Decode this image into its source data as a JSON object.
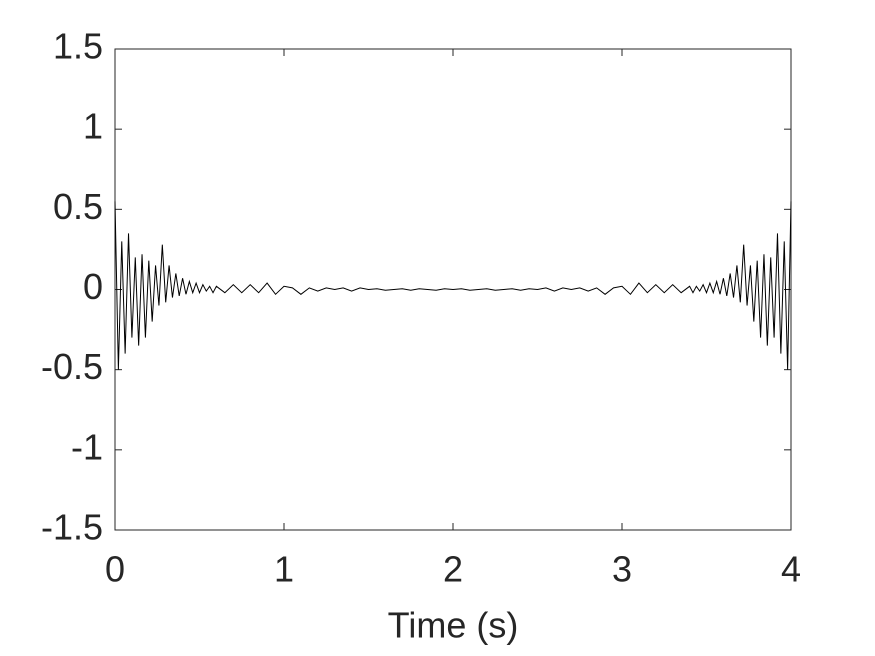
{
  "chart_data": {
    "type": "line",
    "xlabel": "Time (s)",
    "x": [
      0,
      0.02,
      0.04,
      0.06,
      0.08,
      0.1,
      0.12,
      0.14,
      0.16,
      0.18,
      0.2,
      0.22,
      0.24,
      0.26,
      0.28,
      0.3,
      0.32,
      0.34,
      0.36,
      0.38,
      0.4,
      0.42,
      0.44,
      0.46,
      0.48,
      0.5,
      0.52,
      0.54,
      0.56,
      0.58,
      0.6,
      0.65,
      0.7,
      0.75,
      0.8,
      0.85,
      0.9,
      0.95,
      1,
      1.05,
      1.1,
      1.15,
      1.2,
      1.25,
      1.3,
      1.35,
      1.4,
      1.45,
      1.5,
      1.55,
      1.6,
      1.65,
      1.7,
      1.75,
      1.8,
      1.85,
      1.9,
      1.95,
      2,
      2.05,
      2.1,
      2.15,
      2.2,
      2.25,
      2.3,
      2.35,
      2.4,
      2.45,
      2.5,
      2.55,
      2.6,
      2.65,
      2.7,
      2.75,
      2.8,
      2.85,
      2.9,
      2.95,
      3,
      3.05,
      3.1,
      3.15,
      3.2,
      3.25,
      3.3,
      3.35,
      3.4,
      3.42,
      3.44,
      3.46,
      3.48,
      3.5,
      3.52,
      3.54,
      3.56,
      3.58,
      3.6,
      3.62,
      3.64,
      3.66,
      3.68,
      3.7,
      3.72,
      3.74,
      3.76,
      3.78,
      3.8,
      3.82,
      3.84,
      3.86,
      3.88,
      3.9,
      3.92,
      3.94,
      3.96,
      3.98,
      4
    ],
    "series": [
      {
        "color": "#000000",
        "values": [
          0.55,
          -0.5,
          0.3,
          -0.4,
          0.35,
          -0.3,
          0.2,
          -0.35,
          0.22,
          -0.3,
          0.18,
          -0.2,
          0.15,
          -0.1,
          0.28,
          -0.08,
          0.15,
          -0.05,
          0.1,
          -0.04,
          0.07,
          -0.03,
          0.05,
          -0.02,
          0.04,
          -0.02,
          0.03,
          -0.01,
          0.02,
          -0.02,
          0.02,
          -0.02,
          0.03,
          -0.02,
          0.03,
          -0.02,
          0.04,
          -0.03,
          0.02,
          0.01,
          -0.03,
          0.01,
          -0.01,
          0.01,
          0,
          0.01,
          -0.01,
          0.01,
          0,
          0.005,
          -0.005,
          0,
          0.005,
          -0.005,
          0.005,
          0,
          -0.005,
          0.005,
          0,
          0.005,
          -0.005,
          0,
          0.005,
          -0.005,
          0,
          0.005,
          -0.005,
          0.005,
          0,
          0.01,
          -0.01,
          0.01,
          0,
          0.01,
          -0.01,
          0.01,
          -0.03,
          0.01,
          0.02,
          -0.03,
          0.04,
          -0.02,
          0.03,
          -0.02,
          0.03,
          -0.02,
          0.02,
          -0.02,
          0.02,
          -0.01,
          0.03,
          -0.02,
          0.04,
          -0.02,
          0.05,
          -0.03,
          0.07,
          -0.04,
          0.1,
          -0.05,
          0.15,
          -0.08,
          0.28,
          -0.1,
          0.15,
          -0.2,
          0.18,
          -0.3,
          0.22,
          -0.35,
          0.2,
          -0.3,
          0.35,
          -0.4,
          0.3,
          -0.5,
          0.55
        ]
      }
    ],
    "xlim": [
      0,
      4
    ],
    "xticks": [
      0,
      1,
      2,
      3,
      4
    ],
    "ylim": [
      -1.5,
      1.5
    ],
    "yticks": [
      -1.5,
      -1,
      -0.5,
      0,
      0.5,
      1,
      1.5
    ]
  }
}
